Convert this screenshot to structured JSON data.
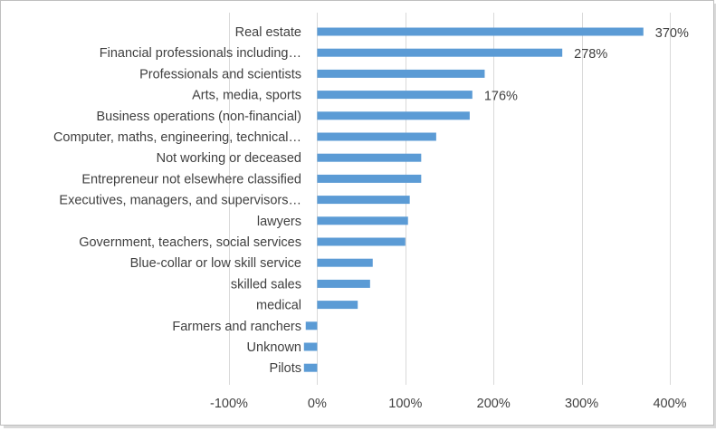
{
  "chart_data": {
    "type": "bar",
    "orientation": "horizontal",
    "categories": [
      "Real estate",
      "Financial professionals including…",
      "Professionals and scientists",
      "Arts, media, sports",
      "Business operations (non-financial)",
      "Computer, maths, engineering, technical…",
      "Not working or deceased",
      "Entrepreneur not elsewhere classified",
      "Executives, managers, and supervisors…",
      "lawyers",
      "Government, teachers, social services",
      "Blue-collar or low skill service",
      "skilled sales",
      "medical",
      "Farmers and ranchers",
      "Unknown",
      "Pilots"
    ],
    "values": [
      370,
      278,
      190,
      176,
      173,
      135,
      118,
      118,
      105,
      103,
      100,
      63,
      60,
      46,
      -13,
      -15,
      -15
    ],
    "data_labels": [
      {
        "index": 0,
        "text": "370%"
      },
      {
        "index": 1,
        "text": "278%"
      },
      {
        "index": 3,
        "text": "176%"
      }
    ],
    "xlim": [
      -100,
      400
    ],
    "xticks": [
      -100,
      0,
      100,
      200,
      300,
      400
    ],
    "xtick_labels": [
      "-100%",
      "0%",
      "100%",
      "200%",
      "300%",
      "400%"
    ],
    "grid": "vertical",
    "bar_color": "#5b9bd5",
    "title": "",
    "xlabel": "",
    "ylabel": ""
  }
}
